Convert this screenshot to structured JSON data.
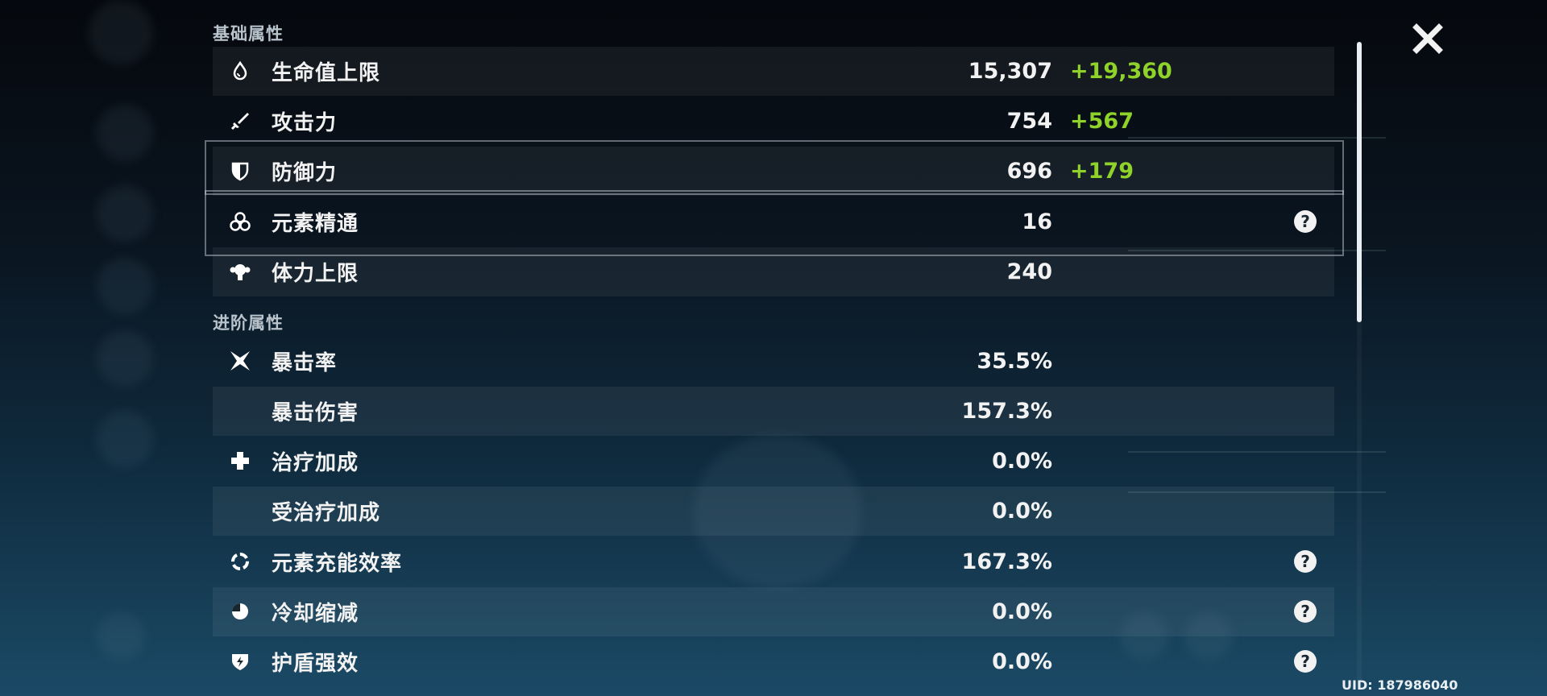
{
  "sections": {
    "basic_title": "基础属性",
    "advanced_title": "进阶属性"
  },
  "basic": [
    {
      "icon": "droplet-icon",
      "label": "生命值上限",
      "value": "15,307",
      "bonus": "+19,360"
    },
    {
      "icon": "sword-icon",
      "label": "攻击力",
      "value": "754",
      "bonus": "+567"
    },
    {
      "icon": "shield-icon",
      "label": "防御力",
      "value": "696",
      "bonus": "+179"
    },
    {
      "icon": "elemental-mastery-icon",
      "label": "元素精通",
      "value": "16",
      "help": "?"
    },
    {
      "icon": "stamina-icon",
      "label": "体力上限",
      "value": "240"
    }
  ],
  "advanced": [
    {
      "icon": "crit-star-icon",
      "label": "暴击率",
      "value": "35.5%"
    },
    {
      "icon": "",
      "label": "暴击伤害",
      "value": "157.3%"
    },
    {
      "icon": "healing-cross-icon",
      "label": "治疗加成",
      "value": "0.0%"
    },
    {
      "icon": "",
      "label": "受治疗加成",
      "value": "0.0%"
    },
    {
      "icon": "energy-recharge-icon",
      "label": "元素充能效率",
      "value": "167.3%",
      "help": "?"
    },
    {
      "icon": "cooldown-icon",
      "label": "冷却缩减",
      "value": "0.0%",
      "help": "?"
    },
    {
      "icon": "shield-strength-icon",
      "label": "护盾强效",
      "value": "0.0%",
      "help": "?"
    }
  ],
  "uid": "UID: 187986040",
  "colors": {
    "bonus": "#8fd32a",
    "text": "#f2f2f2",
    "row_alt": "rgba(255,255,255,0.06)"
  }
}
